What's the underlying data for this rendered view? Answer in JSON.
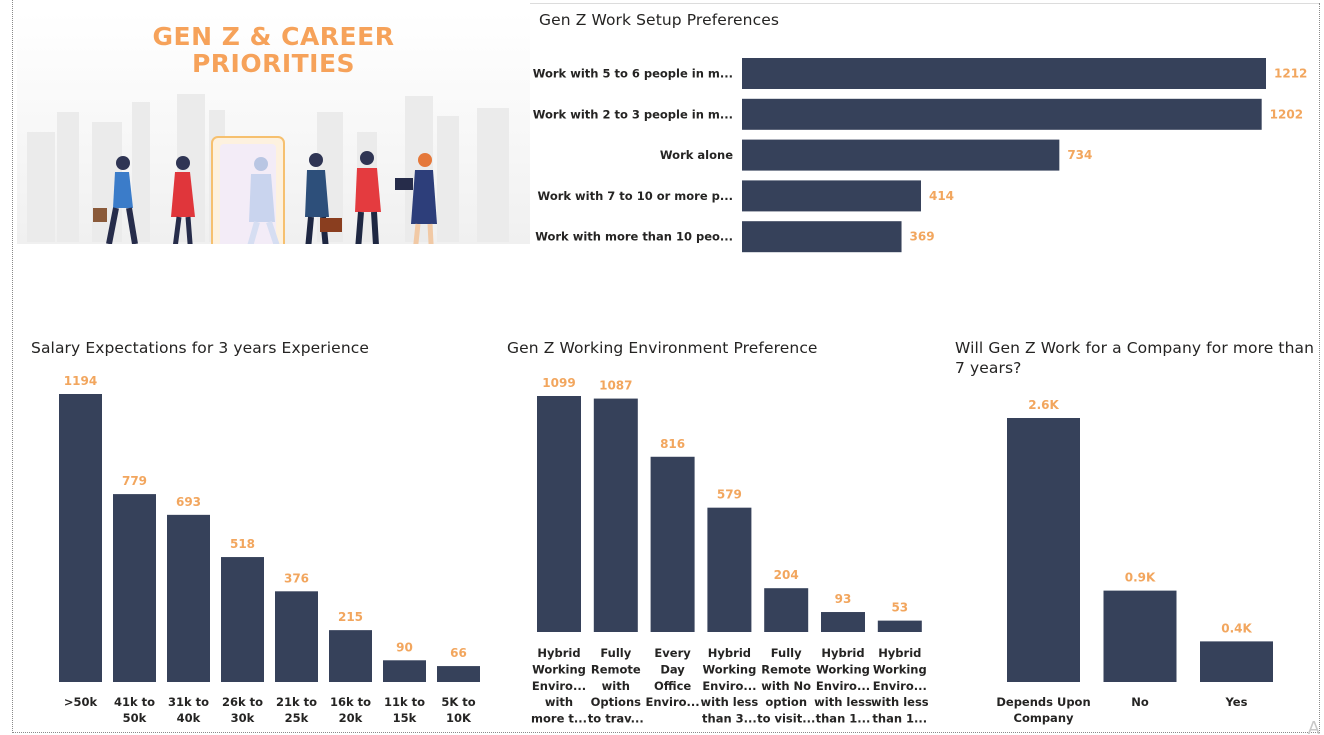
{
  "banner": {
    "title_line1": "GEN Z & CAREER",
    "title_line2": "PRIORITIES"
  },
  "colors": {
    "bar": "#36415a",
    "value_label": "#f2a65e",
    "banner_title": "#f6a25a",
    "floor": "#f8b740"
  },
  "chart_data": [
    {
      "id": "work-setup",
      "type": "bar",
      "orientation": "horizontal",
      "title": "Gen Z Work Setup Preferences",
      "categories": [
        "Work with 5 to 6 people in m...",
        "Work with 2 to 3 people in m...",
        "Work alone",
        "Work with 7 to 10 or more p...",
        "Work with more than 10 peo..."
      ],
      "values": [
        1212,
        1202,
        734,
        414,
        369
      ],
      "value_labels": [
        "1212",
        "1202",
        "734",
        "414",
        "369"
      ],
      "xlim": [
        0,
        1212
      ]
    },
    {
      "id": "salary",
      "type": "bar",
      "title": "Salary Expectations for 3 years Experience",
      "categories": [
        [
          ">50k"
        ],
        [
          "41k to",
          "50k"
        ],
        [
          "31k to",
          "40k"
        ],
        [
          "26k to",
          "30k"
        ],
        [
          "21k to",
          "25k"
        ],
        [
          "16k to",
          "20k"
        ],
        [
          "11k to",
          "15k"
        ],
        [
          "5K to",
          "10K"
        ]
      ],
      "values": [
        1194,
        779,
        693,
        518,
        376,
        215,
        90,
        66
      ],
      "value_labels": [
        "1194",
        "779",
        "693",
        "518",
        "376",
        "215",
        "90",
        "66"
      ],
      "ylim": [
        0,
        1194
      ]
    },
    {
      "id": "environment",
      "type": "bar",
      "title": "Gen Z Working Environment Preference",
      "categories": [
        [
          "Hybrid",
          "Working",
          "Enviro...",
          "with",
          "more t..."
        ],
        [
          "Fully",
          "Remote",
          "with",
          "Options",
          "to trav..."
        ],
        [
          "Every",
          "Day",
          "Office",
          "Enviro..."
        ],
        [
          "Hybrid",
          "Working",
          "Enviro...",
          "with less",
          "than 3..."
        ],
        [
          "Fully",
          "Remote",
          "with No",
          "option",
          "to visit..."
        ],
        [
          "Hybrid",
          "Working",
          "Enviro...",
          "with less",
          "than 1..."
        ],
        [
          "Hybrid",
          "Working",
          "Enviro...",
          "with less",
          "than 1..."
        ]
      ],
      "values": [
        1099,
        1087,
        816,
        579,
        204,
        93,
        53
      ],
      "value_labels": [
        "1099",
        "1087",
        "816",
        "579",
        "204",
        "93",
        "53"
      ],
      "ylim": [
        0,
        1099
      ]
    },
    {
      "id": "loyalty",
      "type": "bar",
      "title": "Will Gen Z Work for a Company for more than 7 years?",
      "categories": [
        [
          "Depends Upon",
          "Company"
        ],
        [
          "No"
        ],
        [
          "Yes"
        ]
      ],
      "values": [
        2600,
        900,
        400
      ],
      "value_labels": [
        "2.6K",
        "0.9K",
        "0.4K"
      ],
      "ylim": [
        0,
        2600
      ]
    }
  ],
  "watermark": "A"
}
